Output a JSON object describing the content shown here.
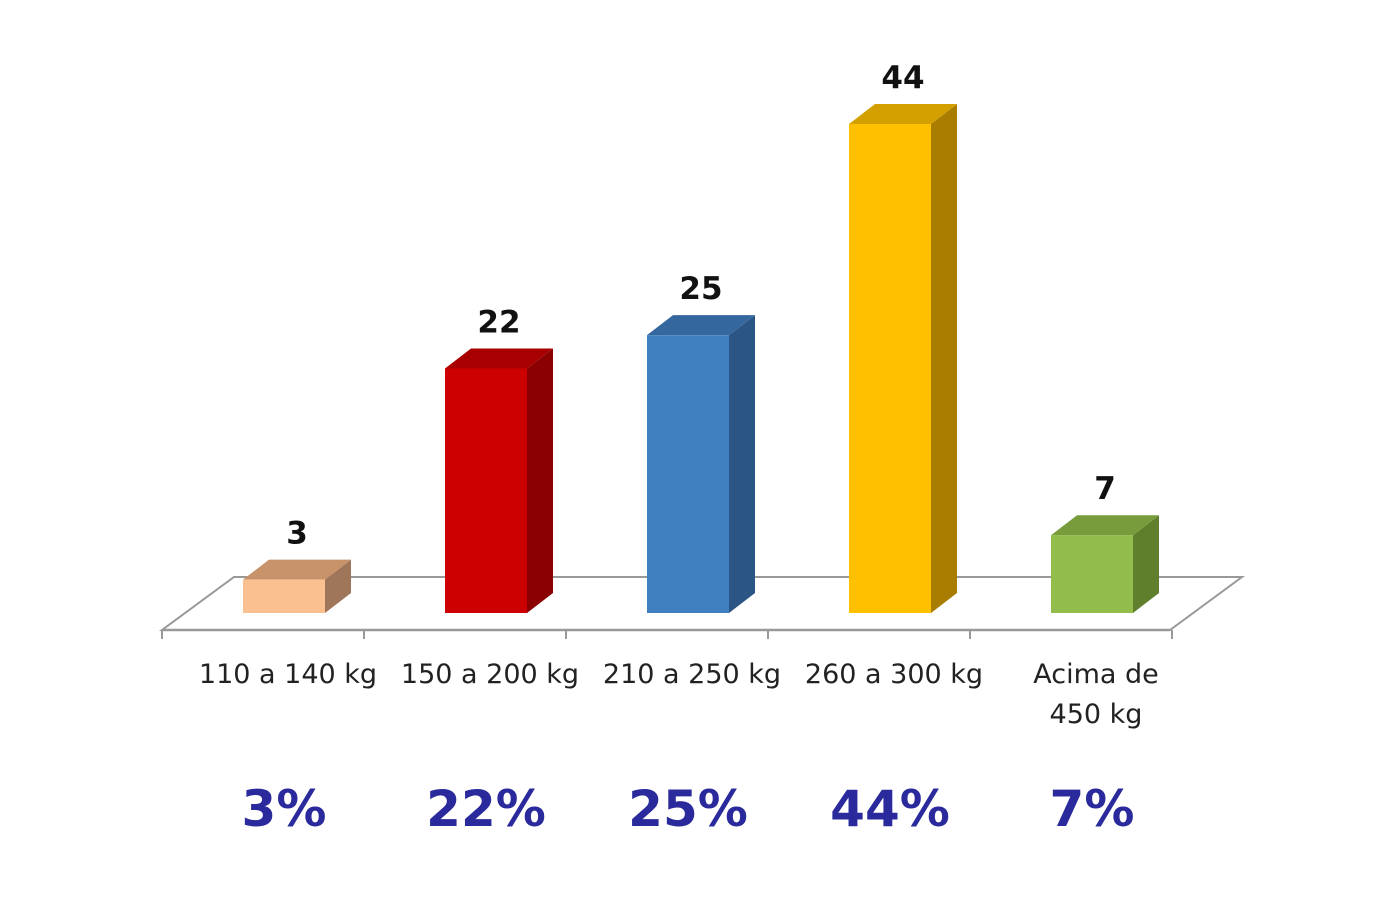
{
  "chart_data": {
    "type": "bar",
    "categories": [
      "110 a 140 kg",
      "150 a 200 kg",
      "210 a 250 kg",
      "260 a 300 kg",
      "Acima de 450 kg"
    ],
    "values": [
      3,
      22,
      25,
      44,
      7
    ],
    "percent_labels": [
      "3%",
      "22%",
      "25%",
      "44%",
      "7%"
    ],
    "title": "",
    "xlabel": "",
    "ylabel": "",
    "ylim": [
      0,
      44
    ],
    "grid": false,
    "legend": "none",
    "style": "3d-column",
    "colors": [
      {
        "front": "#fac090",
        "side": "#a0765a",
        "top": "#c8936a"
      },
      {
        "front": "#cc0000",
        "side": "#8b0000",
        "top": "#a80000"
      },
      {
        "front": "#4080c0",
        "side": "#2a5584",
        "top": "#34679e"
      },
      {
        "front": "#ffc000",
        "side": "#a87d00",
        "top": "#d4a000"
      },
      {
        "front": "#92bc4c",
        "side": "#5f7f2c",
        "top": "#789c3c"
      }
    ],
    "axis_color": "#999999"
  }
}
